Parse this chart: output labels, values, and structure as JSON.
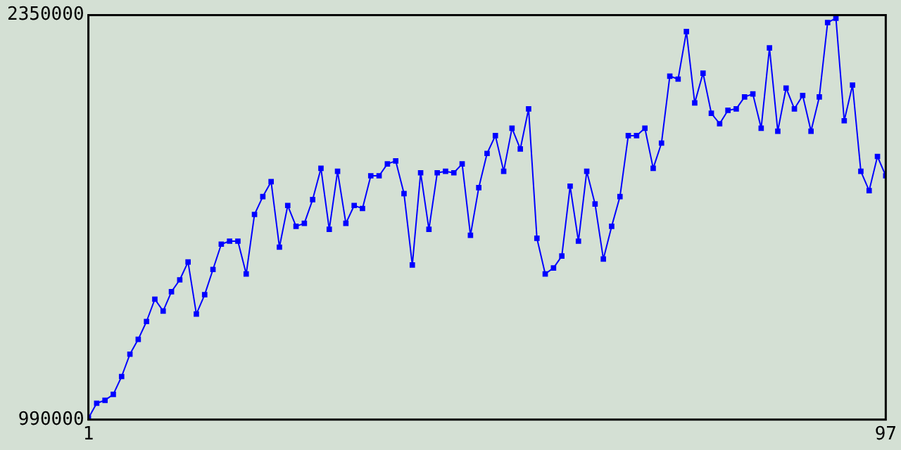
{
  "chart_data": {
    "type": "line",
    "color": "#0000ff",
    "marker": "square",
    "line_style": "solid",
    "x": [
      1,
      2,
      3,
      4,
      5,
      6,
      7,
      8,
      9,
      10,
      11,
      12,
      13,
      14,
      15,
      16,
      17,
      18,
      19,
      20,
      21,
      22,
      23,
      24,
      25,
      26,
      27,
      28,
      29,
      30,
      31,
      32,
      33,
      34,
      35,
      36,
      37,
      38,
      39,
      40,
      41,
      42,
      43,
      44,
      45,
      46,
      47,
      48,
      49,
      50,
      51,
      52,
      53,
      54,
      55,
      56,
      57,
      58,
      59,
      60,
      61,
      62,
      63,
      64,
      65,
      66,
      67,
      68,
      69,
      70,
      71,
      72,
      73,
      74,
      75,
      76,
      77,
      78,
      79,
      80,
      81,
      82,
      83,
      84,
      85,
      86,
      87,
      88,
      89,
      90,
      91,
      92,
      93,
      94,
      95,
      96,
      97
    ],
    "values": [
      995000,
      1045000,
      1055000,
      1075000,
      1135000,
      1210000,
      1260000,
      1320000,
      1395000,
      1355000,
      1420000,
      1460000,
      1520000,
      1345000,
      1410000,
      1495000,
      1580000,
      1590000,
      1590000,
      1480000,
      1680000,
      1740000,
      1790000,
      1570000,
      1710000,
      1640000,
      1650000,
      1730000,
      1835000,
      1630000,
      1825000,
      1650000,
      1710000,
      1700000,
      1810000,
      1810000,
      1850000,
      1860000,
      1750000,
      1510000,
      1820000,
      1630000,
      1820000,
      1825000,
      1820000,
      1850000,
      1610000,
      1770000,
      1885000,
      1945000,
      1825000,
      1970000,
      1900000,
      2035000,
      1600000,
      1480000,
      1500000,
      1540000,
      1775000,
      1590000,
      1825000,
      1715000,
      1530000,
      1640000,
      1740000,
      1945000,
      1945000,
      1970000,
      1835000,
      1920000,
      2145000,
      2135000,
      2295000,
      2055000,
      2155000,
      2020000,
      1985000,
      2030000,
      2035000,
      2075000,
      2085000,
      1970000,
      2240000,
      1960000,
      2105000,
      2035000,
      2080000,
      1960000,
      2075000,
      2325000,
      2340000,
      1995000,
      2115000,
      1825000,
      1760000,
      1875000,
      1810000
    ],
    "xlim": [
      1,
      97
    ],
    "xticks": [
      1,
      97
    ],
    "ylim": [
      990000,
      2350000
    ],
    "yticks": [
      990000,
      2350000
    ]
  }
}
